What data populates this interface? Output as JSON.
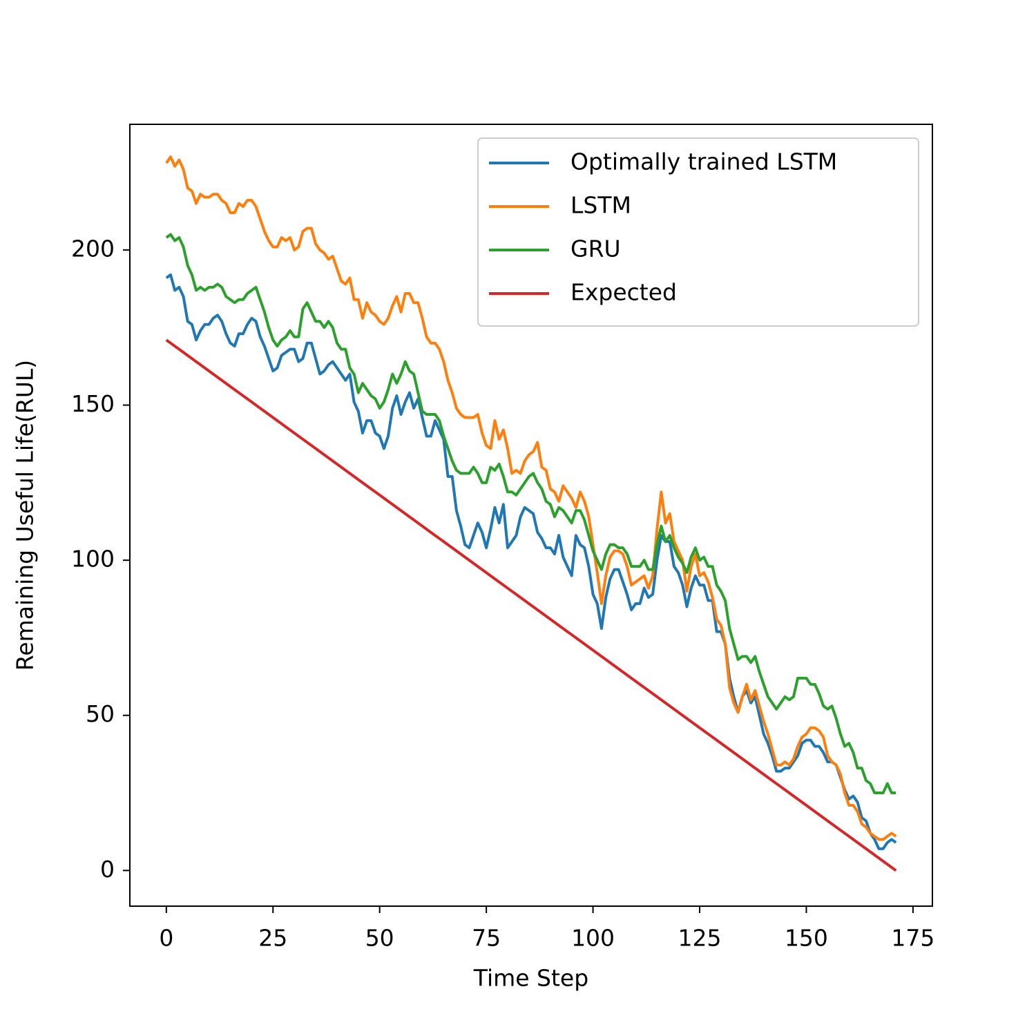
{
  "chart_data": {
    "type": "line",
    "xlabel": "Time Step",
    "ylabel": "Remaining Useful Life(RUL)",
    "x": [
      0,
      1,
      2,
      3,
      4,
      5,
      6,
      7,
      8,
      9,
      10,
      11,
      12,
      13,
      14,
      15,
      16,
      17,
      18,
      19,
      20,
      21,
      22,
      23,
      24,
      25,
      26,
      27,
      28,
      29,
      30,
      31,
      32,
      33,
      34,
      35,
      36,
      37,
      38,
      39,
      40,
      41,
      42,
      43,
      44,
      45,
      46,
      47,
      48,
      49,
      50,
      51,
      52,
      53,
      54,
      55,
      56,
      57,
      58,
      59,
      60,
      61,
      62,
      63,
      64,
      65,
      66,
      67,
      68,
      69,
      70,
      71,
      72,
      73,
      74,
      75,
      76,
      77,
      78,
      79,
      80,
      81,
      82,
      83,
      84,
      85,
      86,
      87,
      88,
      89,
      90,
      91,
      92,
      93,
      94,
      95,
      96,
      97,
      98,
      99,
      100,
      101,
      102,
      103,
      104,
      105,
      106,
      107,
      108,
      109,
      110,
      111,
      112,
      113,
      114,
      115,
      116,
      117,
      118,
      119,
      120,
      121,
      122,
      123,
      124,
      125,
      126,
      127,
      128,
      129,
      130,
      131,
      132,
      133,
      134,
      135,
      136,
      137,
      138,
      139,
      140,
      141,
      142,
      143,
      144,
      145,
      146,
      147,
      148,
      149,
      150,
      151,
      152,
      153,
      154,
      155,
      156,
      157,
      158,
      159,
      160,
      161,
      162,
      163,
      164,
      165,
      166,
      167,
      168,
      169,
      170,
      171
    ],
    "series": [
      {
        "name": "Optimally trained LSTM",
        "color": "#1f77b4",
        "values": [
          191,
          192,
          187,
          188,
          185,
          177,
          176,
          171,
          174,
          176,
          176,
          178,
          179,
          177,
          173,
          170,
          169,
          173,
          173,
          176,
          178,
          177,
          172,
          169,
          165,
          161,
          162,
          166,
          167,
          168,
          168,
          164,
          165,
          170,
          170,
          165,
          160,
          161,
          163,
          164,
          162,
          160,
          158,
          160,
          151,
          148,
          141,
          145,
          145,
          141,
          140,
          136,
          140,
          149,
          153,
          147,
          151,
          154,
          149,
          152,
          146,
          140,
          140,
          145,
          142,
          139,
          127,
          127,
          116,
          111,
          105,
          104,
          108,
          112,
          109,
          104,
          110,
          117,
          112,
          118,
          104,
          106,
          108,
          114,
          117,
          116,
          115,
          109,
          107,
          104,
          104,
          102,
          108,
          101,
          98,
          95,
          108,
          105,
          104,
          98,
          89,
          86,
          78,
          88,
          94,
          97,
          97,
          93,
          89,
          84,
          86,
          86,
          91,
          88,
          89,
          100,
          108,
          106,
          106,
          98,
          96,
          92,
          85,
          91,
          95,
          92,
          92,
          87,
          87,
          77,
          77,
          73,
          62,
          56,
          51,
          56,
          58,
          54,
          56,
          50,
          44,
          41,
          37,
          32,
          32,
          33,
          33,
          35,
          37,
          41,
          42,
          42,
          40,
          40,
          38,
          35,
          35,
          34,
          30,
          26,
          23,
          24,
          22,
          17,
          16,
          12,
          10,
          7,
          7,
          9,
          10,
          9
        ]
      },
      {
        "name": "LSTM",
        "color": "#ff7f0e",
        "values": [
          228,
          230,
          227,
          229,
          226,
          220,
          219,
          215,
          218,
          217,
          217,
          218,
          218,
          216,
          215,
          212,
          212,
          215,
          214,
          216,
          216,
          214,
          210,
          206,
          203,
          201,
          201,
          204,
          203,
          204,
          200,
          201,
          206,
          207,
          207,
          202,
          200,
          199,
          197,
          198,
          194,
          190,
          189,
          191,
          184,
          184,
          178,
          183,
          180,
          179,
          177,
          176,
          178,
          182,
          185,
          180,
          186,
          186,
          183,
          183,
          178,
          172,
          170,
          170,
          168,
          164,
          158,
          154,
          149,
          147,
          146,
          146,
          146,
          147,
          141,
          137,
          136,
          145,
          139,
          142,
          136,
          128,
          129,
          128,
          132,
          134,
          135,
          138,
          130,
          129,
          123,
          122,
          119,
          124,
          122,
          120,
          117,
          122,
          119,
          114,
          105,
          96,
          86,
          95,
          101,
          103,
          103,
          102,
          98,
          92,
          93,
          94,
          95,
          91,
          95,
          110,
          122,
          112,
          115,
          106,
          103,
          100,
          90,
          98,
          102,
          95,
          96,
          93,
          88,
          81,
          79,
          73,
          59,
          54,
          51,
          56,
          60,
          55,
          58,
          53,
          48,
          44,
          39,
          34,
          34,
          35,
          34,
          36,
          40,
          43,
          44,
          46,
          46,
          45,
          43,
          37,
          35,
          34,
          31,
          25,
          21,
          21,
          19,
          15,
          14,
          12,
          11,
          10,
          10,
          11,
          12,
          11
        ]
      },
      {
        "name": "GRU",
        "color": "#2ca02c",
        "values": [
          204,
          205,
          203,
          204,
          201,
          195,
          192,
          187,
          188,
          187,
          188,
          188,
          189,
          188,
          185,
          184,
          183,
          184,
          184,
          186,
          187,
          188,
          184,
          180,
          175,
          171,
          169,
          171,
          172,
          174,
          172,
          172,
          181,
          183,
          180,
          177,
          177,
          175,
          177,
          175,
          170,
          168,
          168,
          162,
          160,
          154,
          157,
          155,
          153,
          152,
          149,
          151,
          155,
          160,
          157,
          160,
          164,
          161,
          160,
          154,
          148,
          147,
          147,
          147,
          145,
          140,
          136,
          132,
          129,
          128,
          128,
          128,
          130,
          128,
          125,
          125,
          130,
          129,
          131,
          127,
          122,
          122,
          121,
          123,
          125,
          127,
          128,
          125,
          123,
          119,
          118,
          114,
          117,
          116,
          114,
          112,
          116,
          116,
          113,
          108,
          103,
          100,
          97,
          102,
          105,
          105,
          104,
          104,
          102,
          98,
          98,
          98,
          100,
          97,
          97,
          105,
          111,
          106,
          108,
          104,
          101,
          99,
          96,
          101,
          104,
          100,
          101,
          98,
          98,
          92,
          90,
          87,
          78,
          73,
          68,
          69,
          69,
          67,
          69,
          64,
          60,
          56,
          54,
          52,
          54,
          56,
          55,
          56,
          62,
          62,
          62,
          60,
          60,
          57,
          53,
          52,
          53,
          49,
          44,
          40,
          41,
          38,
          33,
          33,
          29,
          28,
          25,
          25,
          25,
          28,
          25,
          25
        ]
      },
      {
        "name": "Expected",
        "color": "#d62728",
        "values": [
          171,
          170,
          169,
          168,
          167,
          166,
          165,
          164,
          163,
          162,
          161,
          160,
          159,
          158,
          157,
          156,
          155,
          154,
          153,
          152,
          151,
          150,
          149,
          148,
          147,
          146,
          145,
          144,
          143,
          142,
          141,
          140,
          139,
          138,
          137,
          136,
          135,
          134,
          133,
          132,
          131,
          130,
          129,
          128,
          127,
          126,
          125,
          124,
          123,
          122,
          121,
          120,
          119,
          118,
          117,
          116,
          115,
          114,
          113,
          112,
          111,
          110,
          109,
          108,
          107,
          106,
          105,
          104,
          103,
          102,
          101,
          100,
          99,
          98,
          97,
          96,
          95,
          94,
          93,
          92,
          91,
          90,
          89,
          88,
          87,
          86,
          85,
          84,
          83,
          82,
          81,
          80,
          79,
          78,
          77,
          76,
          75,
          74,
          73,
          72,
          71,
          70,
          69,
          68,
          67,
          66,
          65,
          64,
          63,
          62,
          61,
          60,
          59,
          58,
          57,
          56,
          55,
          54,
          53,
          52,
          51,
          50,
          49,
          48,
          47,
          46,
          45,
          44,
          43,
          42,
          41,
          40,
          39,
          38,
          37,
          36,
          35,
          34,
          33,
          32,
          31,
          30,
          29,
          28,
          27,
          26,
          25,
          24,
          23,
          22,
          21,
          20,
          19,
          18,
          17,
          16,
          15,
          14,
          13,
          12,
          11,
          10,
          9,
          8,
          7,
          6,
          5,
          4,
          3,
          2,
          1,
          0
        ]
      }
    ],
    "xlim": [
      -8.55,
      179.55
    ],
    "xticks": [
      0,
      25,
      50,
      75,
      100,
      125,
      150,
      175
    ],
    "ylim": [
      -11.5,
      240.5
    ],
    "yticks": [
      0,
      50,
      100,
      150,
      200
    ],
    "legend": "upper right",
    "grid": false
  }
}
